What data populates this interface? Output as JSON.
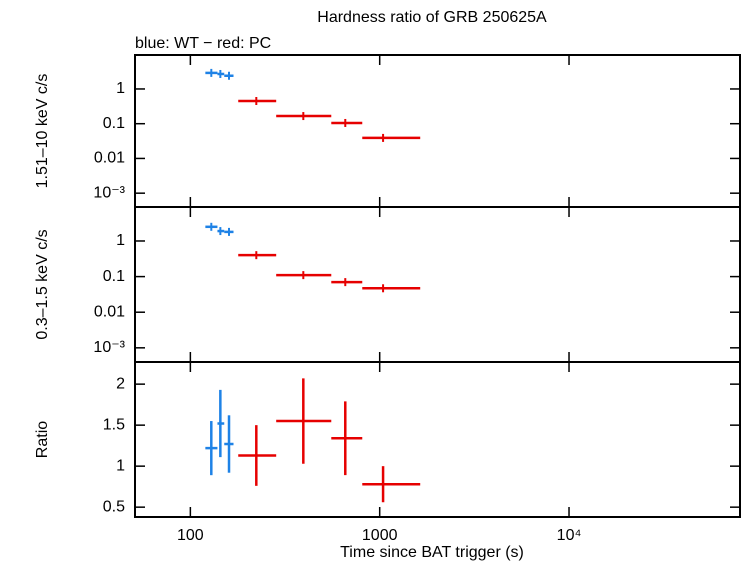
{
  "chart_data": [
    {
      "type": "errorbar",
      "title": "Hardness ratio of GRB 250625A",
      "subtitle": "blue: WT − red: PC",
      "ylabel": "1.51–10 keV c/s",
      "ylog": true,
      "ylim": [
        0.0004,
        9.5
      ],
      "yticks": [
        {
          "value": 0.001,
          "label": "10⁻³"
        },
        0.01,
        0.1,
        1
      ],
      "series": [
        {
          "color": "#1e82e6",
          "x": [
            129,
            144,
            160
          ],
          "xlo": [
            120,
            139,
            151
          ],
          "xhi": [
            139,
            151,
            169
          ],
          "values": [
            2.9,
            2.7,
            2.4
          ]
        },
        {
          "color": "#e60000",
          "x": [
            223,
            395,
            658,
            1042
          ],
          "xlo": [
            179,
            284,
            555,
            809
          ],
          "xhi": [
            284,
            555,
            809,
            1637
          ],
          "values": [
            0.45,
            0.166,
            0.105,
            0.039
          ]
        }
      ]
    },
    {
      "type": "errorbar",
      "ylabel": "0.3–1.5 keV c/s",
      "ylog": true,
      "ylim": [
        0.0004,
        9
      ],
      "yticks": [
        {
          "value": 0.001,
          "label": "10⁻³"
        },
        0.01,
        0.1,
        1
      ],
      "series": [
        {
          "color": "#1e82e6",
          "x": [
            129,
            144,
            160
          ],
          "xlo": [
            120,
            139,
            151
          ],
          "xhi": [
            139,
            151,
            169
          ],
          "values": [
            2.5,
            1.9,
            1.8
          ]
        },
        {
          "color": "#e60000",
          "x": [
            223,
            395,
            658,
            1042
          ],
          "xlo": [
            179,
            284,
            555,
            809
          ],
          "xhi": [
            284,
            555,
            809,
            1637
          ],
          "values": [
            0.4,
            0.11,
            0.07,
            0.047
          ]
        }
      ]
    },
    {
      "type": "errorbar",
      "ylabel": "Ratio",
      "ylog": false,
      "ylim": [
        0.38,
        2.27
      ],
      "yticks": [
        0.5,
        1,
        1.5,
        2
      ],
      "xlabel": "Time since BAT trigger (s)",
      "xlog": true,
      "xlim": [
        51,
        80000
      ],
      "xticks": [
        100,
        1000,
        {
          "value": 10000,
          "label": "10⁴"
        }
      ],
      "series": [
        {
          "color": "#1e82e6",
          "x": [
            129,
            144,
            160
          ],
          "xlo": [
            120,
            139,
            151
          ],
          "xhi": [
            139,
            151,
            169
          ],
          "values": [
            1.22,
            1.52,
            1.27
          ],
          "yerr": [
            0.33,
            0.41,
            0.35
          ]
        },
        {
          "color": "#e60000",
          "x": [
            223,
            395,
            658,
            1042
          ],
          "xlo": [
            179,
            284,
            555,
            809
          ],
          "xhi": [
            284,
            555,
            809,
            1637
          ],
          "values": [
            1.13,
            1.55,
            1.34,
            0.78
          ],
          "yerr": [
            0.37,
            0.52,
            0.45,
            0.22
          ]
        }
      ]
    }
  ]
}
